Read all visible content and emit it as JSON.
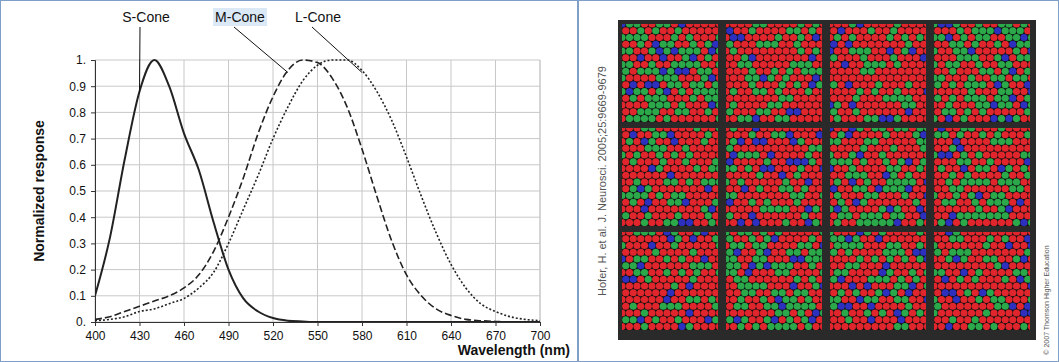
{
  "chart_data": {
    "type": "line",
    "x_label": "Wavelength (nm)",
    "y_label": "Normalized response",
    "x": [
      400,
      410,
      420,
      430,
      440,
      450,
      460,
      470,
      480,
      490,
      500,
      510,
      520,
      530,
      540,
      550,
      560,
      570,
      580,
      590,
      600,
      610,
      620,
      630,
      640,
      650,
      660,
      670,
      680,
      690,
      700
    ],
    "series": [
      {
        "name": "S-Cone",
        "color": "#222222",
        "line_style": "solid",
        "values": [
          0.1,
          0.32,
          0.62,
          0.88,
          1.0,
          0.9,
          0.72,
          0.58,
          0.38,
          0.2,
          0.09,
          0.04,
          0.015,
          0.005,
          0.002,
          0,
          0,
          0,
          0,
          0,
          0,
          0,
          0,
          0,
          0,
          0,
          0,
          0,
          0,
          0,
          0
        ]
      },
      {
        "name": "M-Cone",
        "color": "#222222",
        "line_style": "dashed",
        "values": [
          0.01,
          0.02,
          0.04,
          0.06,
          0.08,
          0.1,
          0.13,
          0.18,
          0.27,
          0.4,
          0.55,
          0.72,
          0.86,
          0.96,
          1.0,
          0.99,
          0.93,
          0.82,
          0.66,
          0.48,
          0.31,
          0.18,
          0.1,
          0.05,
          0.025,
          0.01,
          0.005,
          0.002,
          0,
          0,
          0
        ]
      },
      {
        "name": "L-Cone",
        "color": "#222222",
        "line_style": "dotted",
        "values": [
          0.005,
          0.01,
          0.02,
          0.04,
          0.05,
          0.07,
          0.09,
          0.13,
          0.19,
          0.3,
          0.43,
          0.56,
          0.7,
          0.82,
          0.92,
          0.98,
          1.0,
          1.0,
          0.96,
          0.88,
          0.77,
          0.63,
          0.48,
          0.34,
          0.22,
          0.13,
          0.07,
          0.04,
          0.02,
          0.01,
          0.005
        ]
      }
    ],
    "xlim": [
      400,
      700
    ],
    "xticks": [
      400,
      430,
      460,
      490,
      520,
      550,
      580,
      610,
      640,
      670,
      700
    ],
    "ylim": [
      0,
      1
    ],
    "yticks": [
      {
        "value": 0,
        "label": "0."
      },
      0.1,
      0.2,
      0.3,
      0.4,
      0.5,
      0.6,
      0.7,
      0.8,
      0.9,
      {
        "value": 1,
        "label": "1."
      }
    ],
    "grid": true
  },
  "image_panel": {
    "source_credit": "Hofer, H. et al. J. Neurosci. 2005;25:9669-9679",
    "copyright": "© 2007 Thomson Higher Education"
  }
}
